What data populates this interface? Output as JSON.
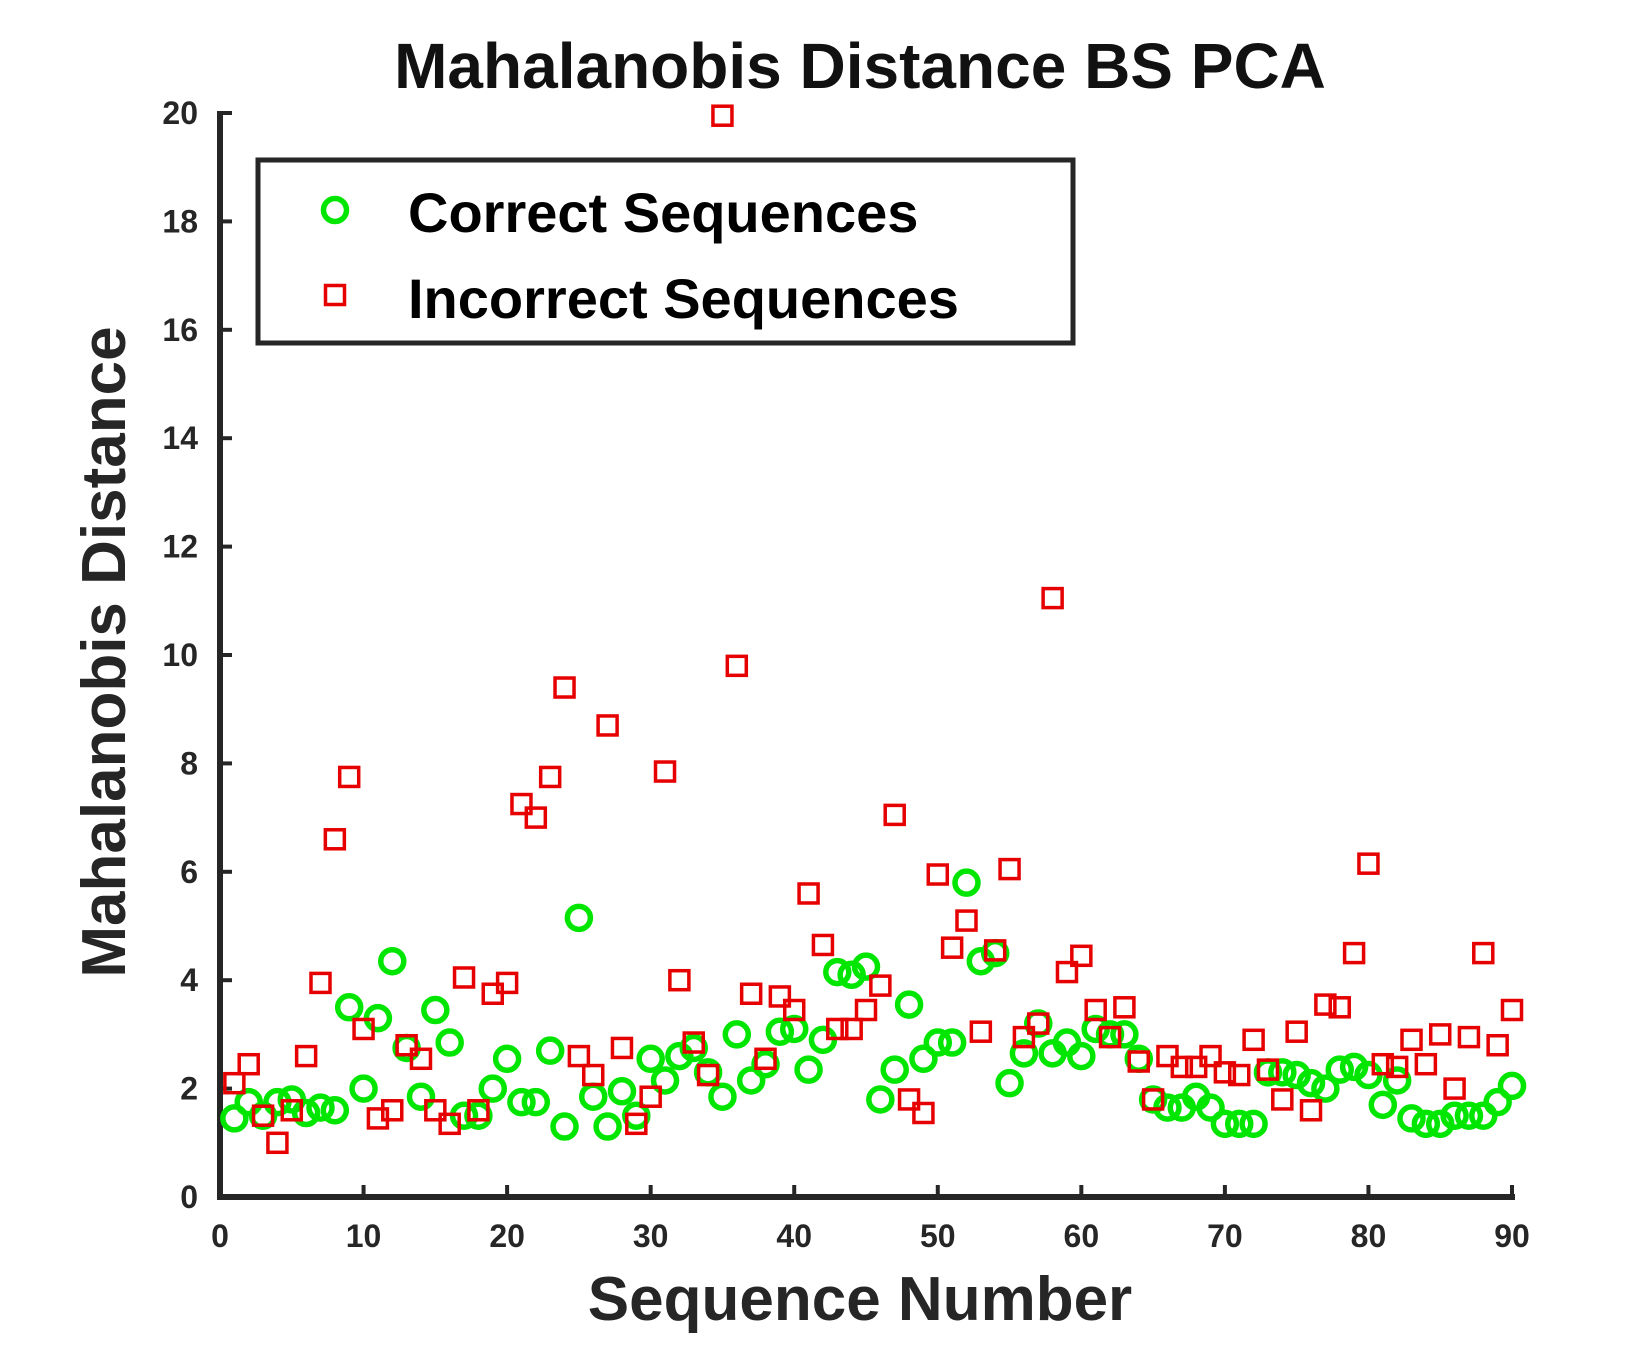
{
  "chart_data": {
    "type": "scatter",
    "title": "Mahalanobis Distance BS PCA",
    "xlabel": "Sequence Number",
    "ylabel": "Mahalanobis Distance",
    "xlim": [
      0,
      90
    ],
    "ylim": [
      0,
      20
    ],
    "xticks": [
      "0",
      "10",
      "20",
      "30",
      "40",
      "50",
      "60",
      "70",
      "80",
      "90"
    ],
    "yticks": [
      "0",
      "2",
      "4",
      "6",
      "8",
      "10",
      "12",
      "14",
      "16",
      "18",
      "20"
    ],
    "grid": false,
    "legend_position": "top-left",
    "series": [
      {
        "name": "Correct Sequences",
        "marker": "circle",
        "color": "#00e600",
        "x": [
          1,
          2,
          3,
          4,
          5,
          6,
          7,
          8,
          9,
          10,
          11,
          12,
          13,
          14,
          15,
          16,
          17,
          18,
          19,
          20,
          21,
          22,
          23,
          24,
          25,
          26,
          27,
          28,
          29,
          30,
          31,
          32,
          33,
          34,
          35,
          36,
          37,
          38,
          39,
          40,
          41,
          42,
          43,
          44,
          45,
          46,
          47,
          48,
          49,
          50,
          51,
          52,
          53,
          54,
          55,
          56,
          57,
          58,
          59,
          60,
          61,
          62,
          63,
          64,
          65,
          66,
          67,
          68,
          69,
          70,
          71,
          72,
          73,
          74,
          75,
          76,
          77,
          78,
          79,
          80,
          81,
          82,
          83,
          84,
          85,
          86,
          87,
          88,
          89,
          90
        ],
        "y": [
          1.45,
          1.75,
          1.5,
          1.75,
          1.8,
          1.55,
          1.65,
          1.6,
          3.5,
          2.0,
          3.3,
          4.35,
          2.75,
          1.85,
          3.45,
          2.85,
          1.5,
          1.5,
          2.0,
          2.55,
          1.75,
          1.75,
          2.7,
          1.3,
          5.15,
          1.85,
          1.3,
          1.95,
          1.5,
          2.55,
          2.15,
          2.6,
          2.75,
          2.3,
          1.85,
          3.0,
          2.15,
          2.45,
          3.05,
          3.1,
          2.35,
          2.9,
          4.15,
          4.1,
          4.25,
          1.8,
          2.35,
          3.55,
          2.55,
          2.85,
          2.85,
          5.8,
          4.35,
          4.5,
          2.1,
          2.65,
          3.2,
          2.65,
          2.85,
          2.6,
          3.1,
          3.0,
          3.0,
          2.55,
          1.8,
          1.65,
          1.65,
          1.85,
          1.65,
          1.35,
          1.35,
          1.35,
          2.3,
          2.3,
          2.25,
          2.1,
          2.0,
          2.35,
          2.4,
          2.25,
          1.7,
          2.15,
          1.45,
          1.35,
          1.35,
          1.5,
          1.5,
          1.5,
          1.75,
          2.05
        ]
      },
      {
        "name": "Incorrect Sequences",
        "marker": "square",
        "color": "#e60000",
        "x": [
          1,
          2,
          3,
          4,
          5,
          6,
          7,
          8,
          9,
          10,
          11,
          12,
          13,
          14,
          15,
          16,
          17,
          18,
          19,
          20,
          21,
          22,
          23,
          24,
          25,
          26,
          27,
          28,
          29,
          30,
          31,
          32,
          33,
          34,
          35,
          36,
          37,
          38,
          39,
          40,
          41,
          42,
          43,
          44,
          45,
          46,
          47,
          48,
          49,
          50,
          51,
          52,
          53,
          54,
          55,
          56,
          57,
          58,
          59,
          60,
          61,
          62,
          63,
          64,
          65,
          66,
          67,
          68,
          69,
          70,
          71,
          72,
          73,
          74,
          75,
          76,
          77,
          78,
          79,
          80,
          81,
          82,
          83,
          84,
          85,
          86,
          87,
          88,
          89,
          90
        ],
        "y": [
          2.1,
          2.45,
          1.5,
          1.0,
          1.6,
          2.6,
          3.95,
          6.6,
          7.75,
          3.1,
          1.45,
          1.6,
          2.8,
          2.55,
          1.6,
          1.35,
          4.05,
          1.6,
          3.75,
          3.95,
          7.25,
          7.0,
          7.75,
          9.4,
          2.6,
          2.25,
          8.7,
          2.75,
          1.35,
          1.85,
          7.85,
          4.0,
          2.85,
          2.25,
          19.95,
          9.8,
          3.75,
          2.55,
          3.7,
          3.45,
          5.6,
          4.65,
          3.1,
          3.1,
          3.45,
          3.9,
          7.05,
          1.8,
          1.55,
          5.95,
          4.6,
          5.1,
          3.05,
          4.55,
          6.05,
          2.95,
          3.2,
          11.05,
          4.15,
          4.45,
          3.45,
          2.95,
          3.5,
          2.5,
          1.8,
          2.6,
          2.4,
          2.4,
          2.6,
          2.3,
          2.25,
          2.9,
          2.35,
          1.8,
          3.05,
          1.6,
          3.55,
          3.5,
          4.5,
          6.15,
          2.45,
          2.4,
          2.9,
          2.45,
          3.0,
          2.0,
          2.95,
          4.5,
          2.8,
          3.45
        ]
      }
    ]
  }
}
